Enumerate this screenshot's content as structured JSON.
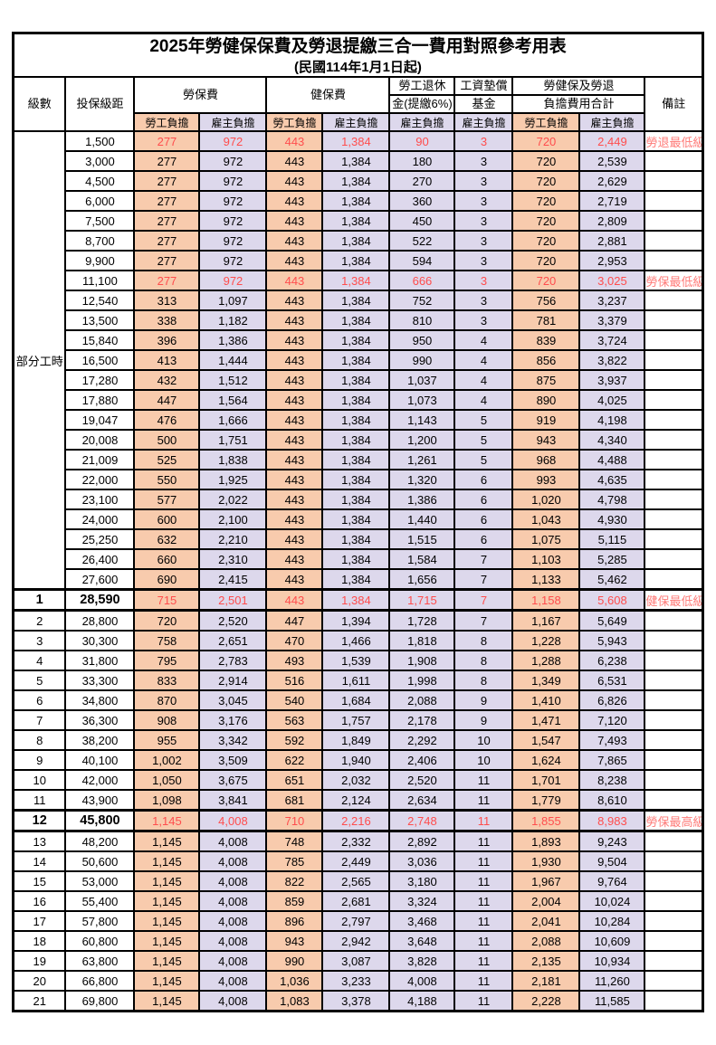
{
  "title": "2025年勞健保保費及勞退提繳三合一費用對照參考用表",
  "subtitle": "(民國114年1月1日起)",
  "header": {
    "level": "級數",
    "bracket": "投保級距",
    "labor_insurance": "勞保費",
    "health_insurance": "健保費",
    "pension_line1": "勞工退休",
    "pension_line2": "金(提繳6%)",
    "wage_fund_line1": "工資墊償",
    "wage_fund_line2": "基金",
    "total_line1": "勞健保及勞退",
    "total_line2": "負擔費用合計",
    "remark": "備註",
    "employee_share": "勞工負擔",
    "employer_share": "雇主負擔"
  },
  "part_time_label": "部分工時",
  "colors": {
    "employee_fill": "#F8CBAD",
    "employer_fill": "#DDD8EC",
    "highlight_red": "#FF4D4D",
    "remark_red": "#FF7B78",
    "border": "#000000"
  },
  "rows": [
    {
      "level": "",
      "bracket": "1,500",
      "values": [
        "277",
        "972",
        "443",
        "1,384",
        "90",
        "3",
        "720",
        "2,449"
      ],
      "remark": "勞退最低級距",
      "red": true,
      "marked": false
    },
    {
      "level": "",
      "bracket": "3,000",
      "values": [
        "277",
        "972",
        "443",
        "1,384",
        "180",
        "3",
        "720",
        "2,539"
      ],
      "remark": "",
      "red": false,
      "marked": false
    },
    {
      "level": "",
      "bracket": "4,500",
      "values": [
        "277",
        "972",
        "443",
        "1,384",
        "270",
        "3",
        "720",
        "2,629"
      ],
      "remark": "",
      "red": false,
      "marked": false
    },
    {
      "level": "",
      "bracket": "6,000",
      "values": [
        "277",
        "972",
        "443",
        "1,384",
        "360",
        "3",
        "720",
        "2,719"
      ],
      "remark": "",
      "red": false,
      "marked": false
    },
    {
      "level": "",
      "bracket": "7,500",
      "values": [
        "277",
        "972",
        "443",
        "1,384",
        "450",
        "3",
        "720",
        "2,809"
      ],
      "remark": "",
      "red": false,
      "marked": false
    },
    {
      "level": "",
      "bracket": "8,700",
      "values": [
        "277",
        "972",
        "443",
        "1,384",
        "522",
        "3",
        "720",
        "2,881"
      ],
      "remark": "",
      "red": false,
      "marked": false
    },
    {
      "level": "",
      "bracket": "9,900",
      "values": [
        "277",
        "972",
        "443",
        "1,384",
        "594",
        "3",
        "720",
        "2,953"
      ],
      "remark": "",
      "red": false,
      "marked": false
    },
    {
      "level": "",
      "bracket": "11,100",
      "values": [
        "277",
        "972",
        "443",
        "1,384",
        "666",
        "3",
        "720",
        "3,025"
      ],
      "remark": "勞保最低級距",
      "red": true,
      "marked": false
    },
    {
      "level": "",
      "bracket": "12,540",
      "values": [
        "313",
        "1,097",
        "443",
        "1,384",
        "752",
        "3",
        "756",
        "3,237"
      ],
      "remark": "",
      "red": false,
      "marked": false
    },
    {
      "level": "",
      "bracket": "13,500",
      "values": [
        "338",
        "1,182",
        "443",
        "1,384",
        "810",
        "3",
        "781",
        "3,379"
      ],
      "remark": "",
      "red": false,
      "marked": false
    },
    {
      "level": "",
      "bracket": "15,840",
      "values": [
        "396",
        "1,386",
        "443",
        "1,384",
        "950",
        "4",
        "839",
        "3,724"
      ],
      "remark": "",
      "red": false,
      "marked": false
    },
    {
      "level": "",
      "bracket": "16,500",
      "values": [
        "413",
        "1,444",
        "443",
        "1,384",
        "990",
        "4",
        "856",
        "3,822"
      ],
      "remark": "",
      "red": false,
      "marked": false
    },
    {
      "level": "",
      "bracket": "17,280",
      "values": [
        "432",
        "1,512",
        "443",
        "1,384",
        "1,037",
        "4",
        "875",
        "3,937"
      ],
      "remark": "",
      "red": false,
      "marked": false
    },
    {
      "level": "",
      "bracket": "17,880",
      "values": [
        "447",
        "1,564",
        "443",
        "1,384",
        "1,073",
        "4",
        "890",
        "4,025"
      ],
      "remark": "",
      "red": false,
      "marked": false
    },
    {
      "level": "",
      "bracket": "19,047",
      "values": [
        "476",
        "1,666",
        "443",
        "1,384",
        "1,143",
        "5",
        "919",
        "4,198"
      ],
      "remark": "",
      "red": false,
      "marked": false
    },
    {
      "level": "",
      "bracket": "20,008",
      "values": [
        "500",
        "1,751",
        "443",
        "1,384",
        "1,200",
        "5",
        "943",
        "4,340"
      ],
      "remark": "",
      "red": false,
      "marked": false
    },
    {
      "level": "",
      "bracket": "21,009",
      "values": [
        "525",
        "1,838",
        "443",
        "1,384",
        "1,261",
        "5",
        "968",
        "4,488"
      ],
      "remark": "",
      "red": false,
      "marked": false
    },
    {
      "level": "",
      "bracket": "22,000",
      "values": [
        "550",
        "1,925",
        "443",
        "1,384",
        "1,320",
        "6",
        "993",
        "4,635"
      ],
      "remark": "",
      "red": false,
      "marked": false
    },
    {
      "level": "",
      "bracket": "23,100",
      "values": [
        "577",
        "2,022",
        "443",
        "1,384",
        "1,386",
        "6",
        "1,020",
        "4,798"
      ],
      "remark": "",
      "red": false,
      "marked": false
    },
    {
      "level": "",
      "bracket": "24,000",
      "values": [
        "600",
        "2,100",
        "443",
        "1,384",
        "1,440",
        "6",
        "1,043",
        "4,930"
      ],
      "remark": "",
      "red": false,
      "marked": false
    },
    {
      "level": "",
      "bracket": "25,250",
      "values": [
        "632",
        "2,210",
        "443",
        "1,384",
        "1,515",
        "6",
        "1,075",
        "5,115"
      ],
      "remark": "",
      "red": false,
      "marked": false
    },
    {
      "level": "",
      "bracket": "26,400",
      "values": [
        "660",
        "2,310",
        "443",
        "1,384",
        "1,584",
        "7",
        "1,103",
        "5,285"
      ],
      "remark": "",
      "red": false,
      "marked": false
    },
    {
      "level": "",
      "bracket": "27,600",
      "values": [
        "690",
        "2,415",
        "443",
        "1,384",
        "1,656",
        "7",
        "1,133",
        "5,462"
      ],
      "remark": "",
      "red": false,
      "marked": false
    },
    {
      "level": "1",
      "bracket": "28,590",
      "values": [
        "715",
        "2,501",
        "443",
        "1,384",
        "1,715",
        "7",
        "1,158",
        "5,608"
      ],
      "remark": "健保最低級距",
      "red": true,
      "marked": true
    },
    {
      "level": "2",
      "bracket": "28,800",
      "values": [
        "720",
        "2,520",
        "447",
        "1,394",
        "1,728",
        "7",
        "1,167",
        "5,649"
      ],
      "remark": "",
      "red": false,
      "marked": false
    },
    {
      "level": "3",
      "bracket": "30,300",
      "values": [
        "758",
        "2,651",
        "470",
        "1,466",
        "1,818",
        "8",
        "1,228",
        "5,943"
      ],
      "remark": "",
      "red": false,
      "marked": false
    },
    {
      "level": "4",
      "bracket": "31,800",
      "values": [
        "795",
        "2,783",
        "493",
        "1,539",
        "1,908",
        "8",
        "1,288",
        "6,238"
      ],
      "remark": "",
      "red": false,
      "marked": false
    },
    {
      "level": "5",
      "bracket": "33,300",
      "values": [
        "833",
        "2,914",
        "516",
        "1,611",
        "1,998",
        "8",
        "1,349",
        "6,531"
      ],
      "remark": "",
      "red": false,
      "marked": false
    },
    {
      "level": "6",
      "bracket": "34,800",
      "values": [
        "870",
        "3,045",
        "540",
        "1,684",
        "2,088",
        "9",
        "1,410",
        "6,826"
      ],
      "remark": "",
      "red": false,
      "marked": false
    },
    {
      "level": "7",
      "bracket": "36,300",
      "values": [
        "908",
        "3,176",
        "563",
        "1,757",
        "2,178",
        "9",
        "1,471",
        "7,120"
      ],
      "remark": "",
      "red": false,
      "marked": false
    },
    {
      "level": "8",
      "bracket": "38,200",
      "values": [
        "955",
        "3,342",
        "592",
        "1,849",
        "2,292",
        "10",
        "1,547",
        "7,493"
      ],
      "remark": "",
      "red": false,
      "marked": false
    },
    {
      "level": "9",
      "bracket": "40,100",
      "values": [
        "1,002",
        "3,509",
        "622",
        "1,940",
        "2,406",
        "10",
        "1,624",
        "7,865"
      ],
      "remark": "",
      "red": false,
      "marked": false
    },
    {
      "level": "10",
      "bracket": "42,000",
      "values": [
        "1,050",
        "3,675",
        "651",
        "2,032",
        "2,520",
        "11",
        "1,701",
        "8,238"
      ],
      "remark": "",
      "red": false,
      "marked": false
    },
    {
      "level": "11",
      "bracket": "43,900",
      "values": [
        "1,098",
        "3,841",
        "681",
        "2,124",
        "2,634",
        "11",
        "1,779",
        "8,610"
      ],
      "remark": "",
      "red": false,
      "marked": false
    },
    {
      "level": "12",
      "bracket": "45,800",
      "values": [
        "1,145",
        "4,008",
        "710",
        "2,216",
        "2,748",
        "11",
        "1,855",
        "8,983"
      ],
      "remark": "勞保最高級距",
      "red": true,
      "marked": true
    },
    {
      "level": "13",
      "bracket": "48,200",
      "values": [
        "1,145",
        "4,008",
        "748",
        "2,332",
        "2,892",
        "11",
        "1,893",
        "9,243"
      ],
      "remark": "",
      "red": false,
      "marked": false
    },
    {
      "level": "14",
      "bracket": "50,600",
      "values": [
        "1,145",
        "4,008",
        "785",
        "2,449",
        "3,036",
        "11",
        "1,930",
        "9,504"
      ],
      "remark": "",
      "red": false,
      "marked": false
    },
    {
      "level": "15",
      "bracket": "53,000",
      "values": [
        "1,145",
        "4,008",
        "822",
        "2,565",
        "3,180",
        "11",
        "1,967",
        "9,764"
      ],
      "remark": "",
      "red": false,
      "marked": false
    },
    {
      "level": "16",
      "bracket": "55,400",
      "values": [
        "1,145",
        "4,008",
        "859",
        "2,681",
        "3,324",
        "11",
        "2,004",
        "10,024"
      ],
      "remark": "",
      "red": false,
      "marked": false
    },
    {
      "level": "17",
      "bracket": "57,800",
      "values": [
        "1,145",
        "4,008",
        "896",
        "2,797",
        "3,468",
        "11",
        "2,041",
        "10,284"
      ],
      "remark": "",
      "red": false,
      "marked": false
    },
    {
      "level": "18",
      "bracket": "60,800",
      "values": [
        "1,145",
        "4,008",
        "943",
        "2,942",
        "3,648",
        "11",
        "2,088",
        "10,609"
      ],
      "remark": "",
      "red": false,
      "marked": false
    },
    {
      "level": "19",
      "bracket": "63,800",
      "values": [
        "1,145",
        "4,008",
        "990",
        "3,087",
        "3,828",
        "11",
        "2,135",
        "10,934"
      ],
      "remark": "",
      "red": false,
      "marked": false
    },
    {
      "level": "20",
      "bracket": "66,800",
      "values": [
        "1,145",
        "4,008",
        "1,036",
        "3,233",
        "4,008",
        "11",
        "2,181",
        "11,260"
      ],
      "remark": "",
      "red": false,
      "marked": false
    },
    {
      "level": "21",
      "bracket": "69,800",
      "values": [
        "1,145",
        "4,008",
        "1,083",
        "3,378",
        "4,188",
        "11",
        "2,228",
        "11,585"
      ],
      "remark": "",
      "red": false,
      "marked": false
    }
  ]
}
